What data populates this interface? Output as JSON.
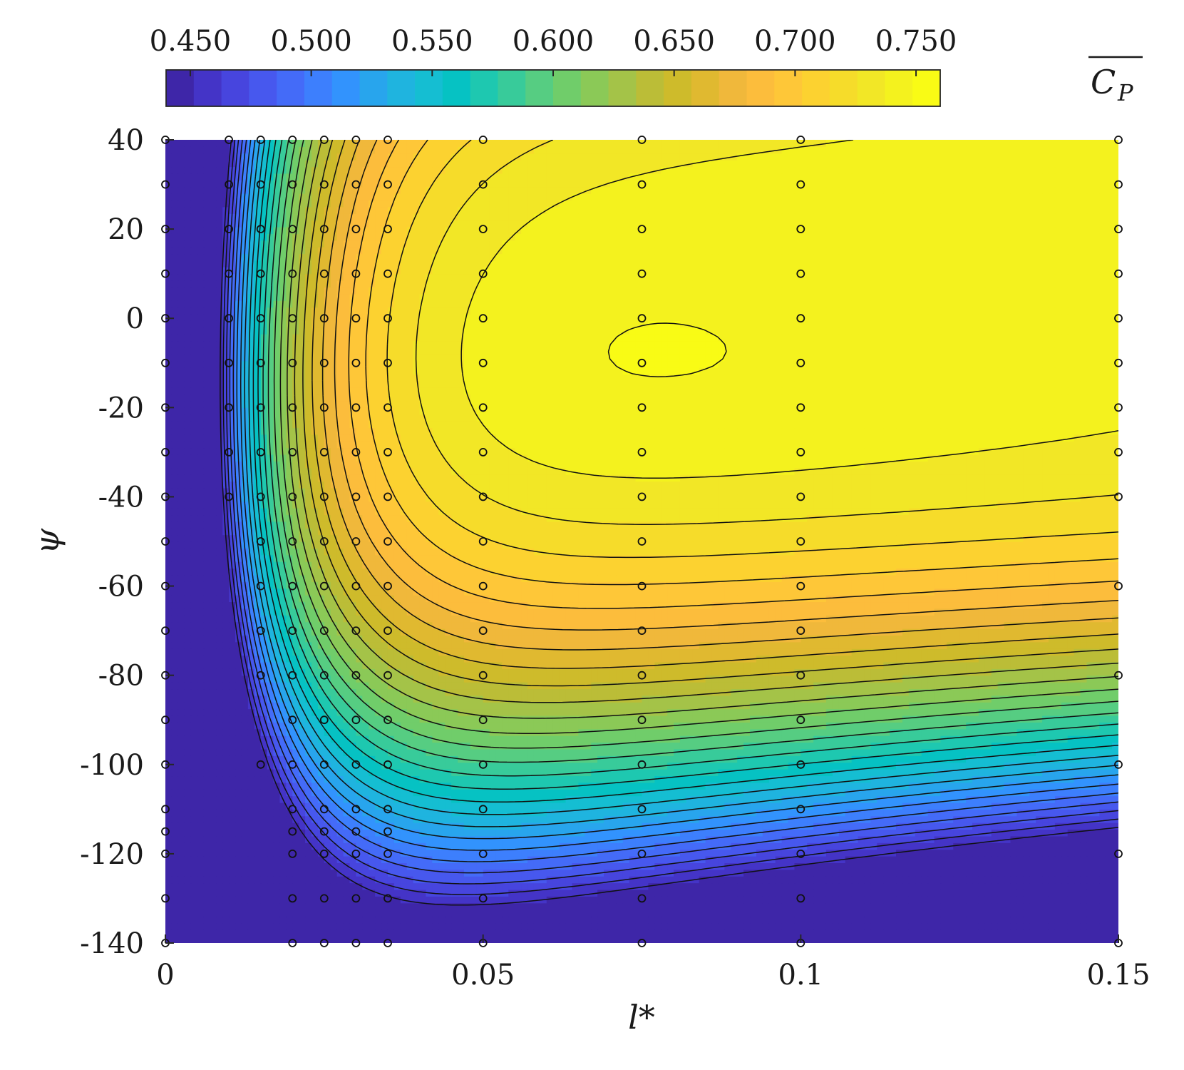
{
  "chart_data": {
    "type": "heatmap",
    "subtype": "filled-contour",
    "title": "",
    "xlabel": "l*",
    "ylabel": "ψ",
    "xlim": [
      0,
      0.15
    ],
    "ylim": [
      -140,
      40
    ],
    "x_ticks": [
      0,
      0.05,
      0.1,
      0.15
    ],
    "x_tick_labels": [
      "0",
      "0.05",
      "0.1",
      "0.15"
    ],
    "y_ticks": [
      40,
      20,
      0,
      -20,
      -40,
      -60,
      -80,
      -100,
      -120,
      -140
    ],
    "y_tick_labels": [
      "40",
      "20",
      "0",
      "-20",
      "-40",
      "-60",
      "-80",
      "-100",
      "-120",
      "-140"
    ],
    "colorbar": {
      "label": "C_P (overlined)",
      "label_main": "C",
      "label_sub": "P",
      "location": "top",
      "range": [
        0.44,
        0.76
      ],
      "ticks": [
        0.45,
        0.5,
        0.55,
        0.6,
        0.65,
        0.7,
        0.75
      ],
      "tick_labels": [
        "0.450",
        "0.500",
        "0.550",
        "0.600",
        "0.650",
        "0.700",
        "0.750"
      ],
      "levels": 30,
      "colors": [
        "#3e26a8",
        "#4434c7",
        "#4745de",
        "#4758ee",
        "#446bf8",
        "#3d7ffd",
        "#3293fd",
        "#28a5ed",
        "#1fb4df",
        "#15bed2",
        "#06c2c3",
        "#1ec8b0",
        "#38cb9a",
        "#56cd82",
        "#70cd6a",
        "#8bc957",
        "#a4c348",
        "#bbbd37",
        "#cebb2b",
        "#e0b930",
        "#f0b83b",
        "#fcbd3c",
        "#fec738",
        "#fcd230",
        "#f6dc2a",
        "#f2e726",
        "#f4f21e",
        "#f9fb15"
      ]
    },
    "field_model": "C_P(l*, ψ) ≈ smooth fit of the printed contours",
    "sample_points": {
      "marker": "open-circle",
      "columns": [
        {
          "x": 0,
          "y": [
            40,
            30,
            20,
            10,
            0,
            -10,
            -20,
            -30,
            -40,
            -50,
            -60,
            -70,
            -80,
            -90,
            -100,
            -110,
            -115,
            -120,
            -130,
            -140
          ]
        },
        {
          "x": 0.01,
          "y": [
            40,
            30,
            20,
            10,
            0,
            -10,
            -20,
            -30,
            -40
          ]
        },
        {
          "x": 0.015,
          "y": [
            40,
            30,
            20,
            10,
            0,
            -10,
            -20,
            -30,
            -40,
            -50,
            -60,
            -70,
            -80,
            -100
          ]
        },
        {
          "x": 0.02,
          "y": [
            40,
            30,
            20,
            10,
            0,
            -10,
            -20,
            -30,
            -40,
            -50,
            -60,
            -70,
            -80,
            -90,
            -100,
            -110,
            -115,
            -120,
            -130,
            -140
          ]
        },
        {
          "x": 0.025,
          "y": [
            40,
            30,
            20,
            10,
            0,
            -10,
            -20,
            -30,
            -40,
            -50,
            -60,
            -70,
            -80,
            -90,
            -100,
            -110,
            -115,
            -120,
            -130,
            -140
          ]
        },
        {
          "x": 0.03,
          "y": [
            40,
            30,
            20,
            10,
            0,
            -10,
            -20,
            -30,
            -40,
            -50,
            -60,
            -70,
            -80,
            -90,
            -100,
            -110,
            -115,
            -120,
            -130,
            -140
          ]
        },
        {
          "x": 0.035,
          "y": [
            40,
            30,
            20,
            10,
            0,
            -10,
            -20,
            -30,
            -40,
            -50,
            -60,
            -70,
            -80,
            -90,
            -100,
            -110,
            -115,
            -120,
            -130,
            -140
          ]
        },
        {
          "x": 0.05,
          "y": [
            40,
            30,
            20,
            10,
            0,
            -10,
            -20,
            -30,
            -40,
            -50,
            -60,
            -70,
            -80,
            -90,
            -100,
            -110,
            -120,
            -130,
            -140
          ]
        },
        {
          "x": 0.075,
          "y": [
            40,
            30,
            20,
            10,
            0,
            -10,
            -20,
            -30,
            -40,
            -50,
            -60,
            -70,
            -80,
            -90,
            -100,
            -110,
            -120,
            -130,
            -140
          ]
        },
        {
          "x": 0.1,
          "y": [
            40,
            30,
            20,
            10,
            0,
            -10,
            -20,
            -30,
            -40,
            -50,
            -60,
            -70,
            -80,
            -90,
            -100,
            -110,
            -120,
            -130,
            -140
          ]
        },
        {
          "x": 0.15,
          "y": [
            40,
            30,
            20,
            10,
            0,
            -10,
            -20,
            -30,
            -40,
            -60,
            -80,
            -100,
            -120,
            -140
          ]
        }
      ]
    }
  }
}
